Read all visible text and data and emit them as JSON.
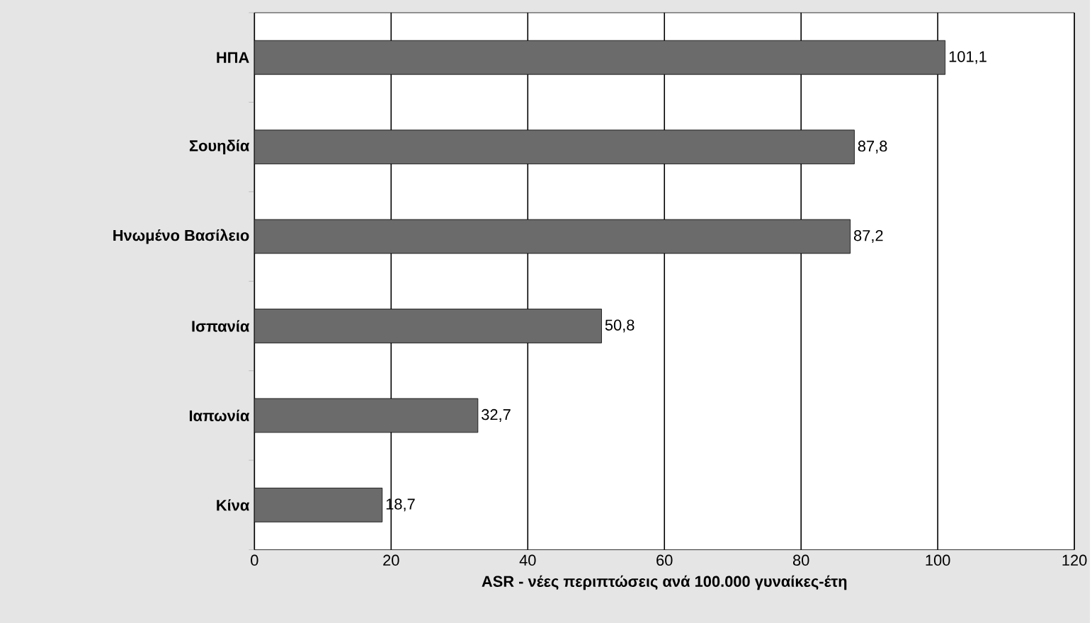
{
  "chart_data": {
    "type": "bar",
    "orientation": "horizontal",
    "xlabel": "ASR - νέες περιπτώσεις ανά 100.000 γυναίκες-έτη",
    "categories": [
      "ΗΠΑ",
      "Σουηδία",
      "Ηνωμένο Βασίλειο",
      "Ισπανία",
      "Ιαπωνία",
      "Κίνα"
    ],
    "values": [
      101.1,
      87.8,
      87.2,
      50.8,
      32.7,
      18.7
    ],
    "value_labels": [
      "101,1",
      "87,8",
      "87,2",
      "50,8",
      "32,7",
      "18,7"
    ],
    "color": "#6b6b6b",
    "xlim": [
      0,
      120
    ],
    "xticks": [
      0,
      20,
      40,
      60,
      80,
      100,
      120
    ],
    "grid": "x"
  }
}
